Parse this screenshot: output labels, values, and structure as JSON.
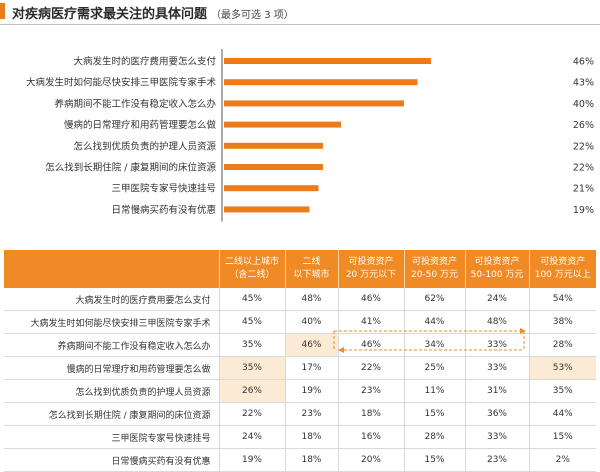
{
  "header": {
    "title": "对疾病医疗需求最关注的具体问题",
    "note": "（最多可选 3 项）"
  },
  "colors": {
    "accent": "#ec7c1b",
    "bar": "#ec7c1b",
    "table_header": "#ef8a24",
    "highlight": "#fcebd4"
  },
  "chart_data": [
    {
      "type": "bar",
      "orientation": "horizontal",
      "categories": [
        "大病发生时的医疗费用要怎么支付",
        "大病发生时如何能尽快安排三甲医院专家手术",
        "养病期间不能工作没有稳定收入怎么办",
        "慢病的日常理疗和用药管理要怎么做",
        "怎么找到优质负责的护理人员资源",
        "怎么找到长期住院 / 康复期间的床位资源",
        "三甲医院专家号快速挂号",
        "日常慢病买药有没有优惠"
      ],
      "values": [
        46,
        43,
        40,
        26,
        22,
        22,
        21,
        19
      ],
      "value_labels": [
        "46%",
        "43%",
        "40%",
        "26%",
        "22%",
        "22%",
        "21%",
        "19%"
      ],
      "unit": "%",
      "xlim": [
        0,
        100
      ],
      "grid": false,
      "legend": "none"
    },
    {
      "type": "table",
      "columns": [
        "",
        "二线以上城市\n（含二线）",
        "二线\n以下城市",
        "可投资资产\n20 万元以下",
        "可投资资产\n20-50 万元",
        "可投资资产\n50-100 万元",
        "可投资资产\n100 万元以上"
      ],
      "rows": [
        {
          "label": "大病发生时的医疗费用要怎么支付",
          "values": [
            "45%",
            "48%",
            "46%",
            "62%",
            "24%",
            "54%"
          ]
        },
        {
          "label": "大病发生时如何能尽快安排三甲医院专家手术",
          "values": [
            "45%",
            "40%",
            "41%",
            "44%",
            "48%",
            "38%"
          ]
        },
        {
          "label": "养病期间不能工作没有稳定收入怎么办",
          "values": [
            "35%",
            "46%",
            "46%",
            "34%",
            "33%",
            "28%"
          ]
        },
        {
          "label": "慢病的日常理疗和用药管理要怎么做",
          "values": [
            "35%",
            "17%",
            "22%",
            "25%",
            "33%",
            "53%"
          ]
        },
        {
          "label": "怎么找到优质负责的护理人员资源",
          "values": [
            "26%",
            "19%",
            "23%",
            "11%",
            "31%",
            "35%"
          ]
        },
        {
          "label": "怎么找到长期住院 / 康复期间的床位资源",
          "values": [
            "22%",
            "23%",
            "18%",
            "15%",
            "36%",
            "44%"
          ]
        },
        {
          "label": "三甲医院专家号快速挂号",
          "values": [
            "24%",
            "18%",
            "16%",
            "28%",
            "33%",
            "15%"
          ]
        },
        {
          "label": "日常慢病买药有没有优惠",
          "values": [
            "19%",
            "18%",
            "20%",
            "15%",
            "23%",
            "2%"
          ]
        }
      ],
      "highlighted_cells": [
        [
          2,
          1
        ],
        [
          3,
          0
        ],
        [
          3,
          5
        ],
        [
          4,
          0
        ]
      ]
    }
  ]
}
